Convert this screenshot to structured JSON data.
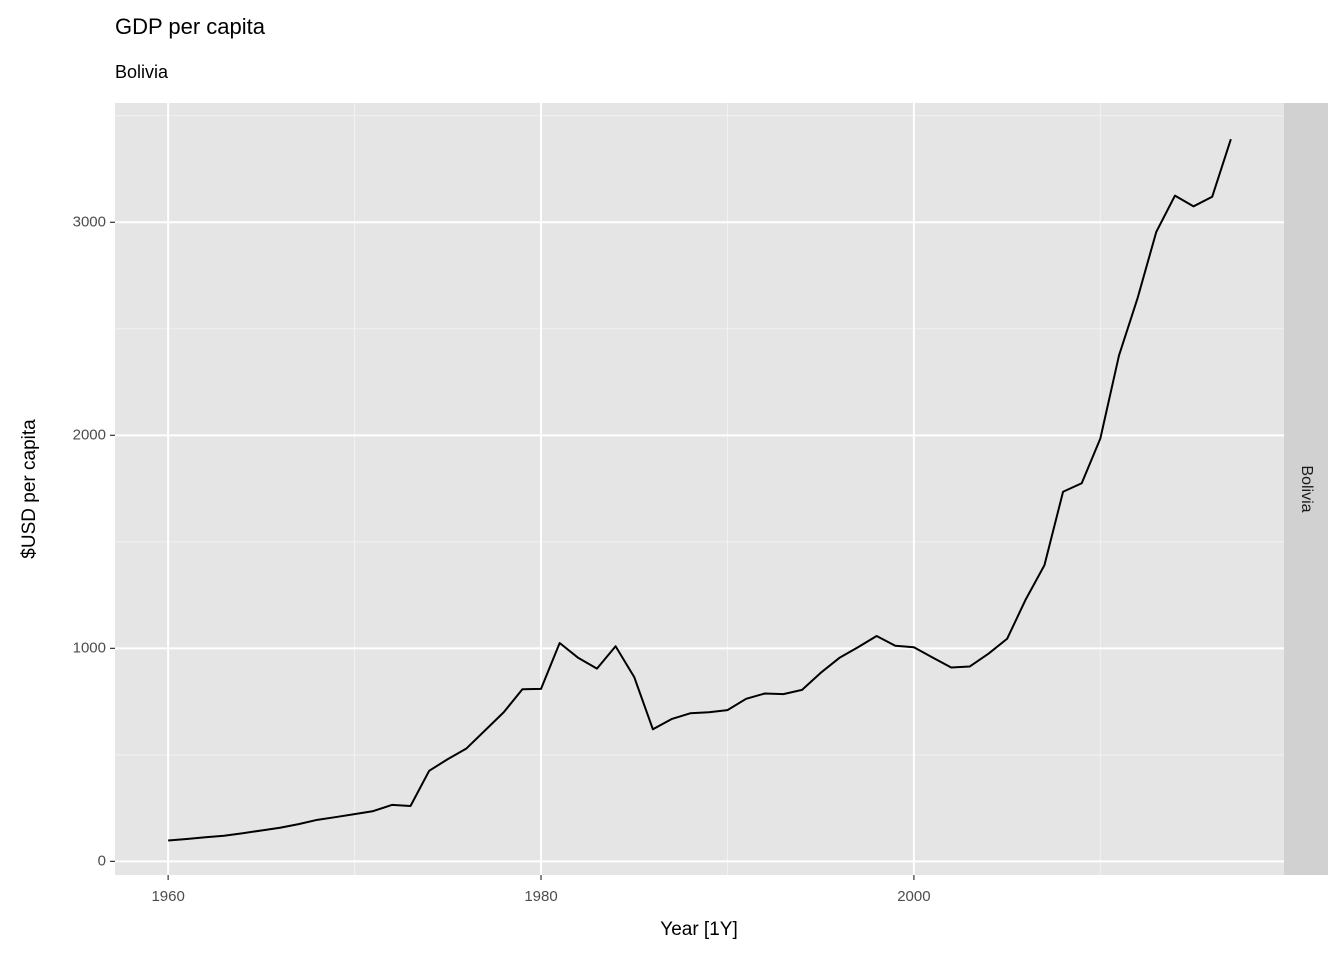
{
  "chart_data": {
    "type": "line",
    "title": "GDP per capita",
    "subtitle": "Bolivia",
    "facet": "Bolivia",
    "x_label": "Year [1Y]",
    "y_label": "$USD per capita",
    "x": [
      1960,
      1961,
      1962,
      1963,
      1964,
      1965,
      1966,
      1967,
      1968,
      1969,
      1970,
      1971,
      1972,
      1973,
      1974,
      1975,
      1976,
      1977,
      1978,
      1979,
      1980,
      1981,
      1982,
      1983,
      1984,
      1985,
      1986,
      1987,
      1988,
      1989,
      1990,
      1991,
      1992,
      1993,
      1994,
      1995,
      1996,
      1997,
      1998,
      1999,
      2000,
      2001,
      2002,
      2003,
      2004,
      2005,
      2006,
      2007,
      2008,
      2009,
      2010,
      2011,
      2012,
      2013,
      2014,
      2015,
      2016,
      2017
    ],
    "values": [
      98,
      105,
      113,
      120,
      132,
      145,
      158,
      175,
      195,
      208,
      222,
      236,
      265,
      260,
      425,
      480,
      530,
      615,
      700,
      808,
      810,
      1025,
      955,
      905,
      1010,
      865,
      620,
      668,
      695,
      700,
      710,
      763,
      788,
      785,
      805,
      885,
      955,
      1005,
      1058,
      1012,
      1005,
      957,
      910,
      915,
      975,
      1045,
      1230,
      1390,
      1735,
      1775,
      1985,
      2375,
      2645,
      2955,
      3125,
      3075,
      3120,
      3390
    ],
    "color": "#000000",
    "xlim": [
      1957.15,
      2019.85
    ],
    "xticks": [
      1960,
      1980,
      2000
    ],
    "xminor": [
      1970,
      1990,
      2010
    ],
    "ylim": [
      -64,
      3560
    ],
    "yticks": [
      0,
      1000,
      2000,
      3000
    ],
    "yminor": [
      500,
      1500,
      2500,
      3500
    ],
    "grid": true
  }
}
